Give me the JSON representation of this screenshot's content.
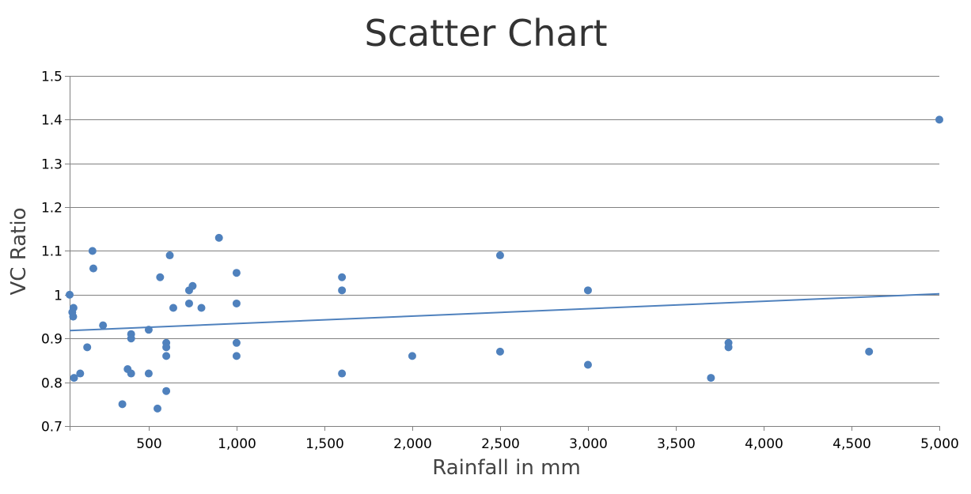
{
  "chart_data": {
    "type": "scatter",
    "title": "Scatter Chart",
    "xlabel": "Rainfall in mm",
    "ylabel": "VC Ratio",
    "xlim": [
      50,
      5000
    ],
    "ylim": [
      0.7,
      1.5
    ],
    "x_ticks": [
      500,
      1000,
      1500,
      2000,
      2500,
      3000,
      3500,
      4000,
      4500,
      5000
    ],
    "x_tick_labels": [
      "500",
      "1,000",
      "1,500",
      "2,000",
      "2,500",
      "3,000",
      "3,500",
      "4,000",
      "4,500",
      "5,000"
    ],
    "y_ticks": [
      0.7,
      0.8,
      0.9,
      1.0,
      1.1,
      1.2,
      1.3,
      1.4,
      1.5
    ],
    "y_tick_labels": [
      "0.7",
      "0.8",
      "0.9",
      "1",
      "1.1",
      "1.2",
      "1.3",
      "1.4",
      "1.5"
    ],
    "grid": true,
    "colors": {
      "marker": "#4f81bd",
      "trendline": "#4f81bd",
      "grid": "#808080"
    },
    "series": [
      {
        "points": [
          [
            50,
            1.0
          ],
          [
            65,
            0.96
          ],
          [
            70,
            0.95
          ],
          [
            72,
            0.97
          ],
          [
            75,
            0.81
          ],
          [
            110,
            0.82
          ],
          [
            150,
            0.88
          ],
          [
            180,
            1.1
          ],
          [
            185,
            1.06
          ],
          [
            240,
            0.93
          ],
          [
            350,
            0.75
          ],
          [
            380,
            0.83
          ],
          [
            400,
            0.91
          ],
          [
            400,
            0.9
          ],
          [
            400,
            0.82
          ],
          [
            500,
            0.92
          ],
          [
            500,
            0.82
          ],
          [
            550,
            0.74
          ],
          [
            565,
            1.04
          ],
          [
            600,
            0.89
          ],
          [
            600,
            0.88
          ],
          [
            600,
            0.86
          ],
          [
            600,
            0.78
          ],
          [
            620,
            1.09
          ],
          [
            640,
            0.97
          ],
          [
            730,
            1.01
          ],
          [
            730,
            0.98
          ],
          [
            750,
            1.02
          ],
          [
            800,
            0.97
          ],
          [
            900,
            1.13
          ],
          [
            1000,
            1.05
          ],
          [
            1000,
            0.98
          ],
          [
            1000,
            0.89
          ],
          [
            1000,
            0.86
          ],
          [
            1600,
            1.04
          ],
          [
            1600,
            1.01
          ],
          [
            1600,
            0.82
          ],
          [
            2000,
            0.86
          ],
          [
            2500,
            1.09
          ],
          [
            2500,
            0.87
          ],
          [
            3000,
            1.01
          ],
          [
            3000,
            0.84
          ],
          [
            3700,
            0.81
          ],
          [
            3800,
            0.89
          ],
          [
            3800,
            0.88
          ],
          [
            4600,
            0.87
          ],
          [
            5000,
            1.4
          ]
        ]
      }
    ],
    "trendline": {
      "type": "linear",
      "points": [
        [
          50,
          0.918
        ],
        [
          5000,
          1.002
        ]
      ]
    }
  }
}
